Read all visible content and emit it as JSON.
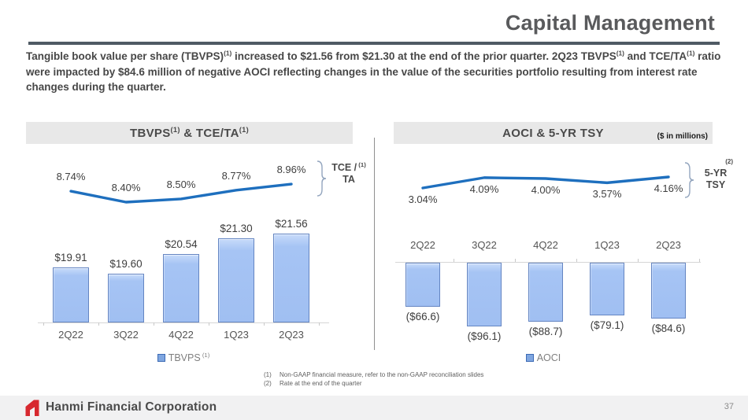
{
  "header": {
    "title": "Capital Management"
  },
  "intro": {
    "segments": [
      {
        "text": "Tangible book value per share (TBVPS)"
      },
      {
        "text": "(1)",
        "sup": true
      },
      {
        "text": " increased to $21.56 from $21.30 at the end of the prior quarter. 2Q23 TBVPS"
      },
      {
        "text": "(1)",
        "sup": true
      },
      {
        "text": " and TCE/TA"
      },
      {
        "text": "(1)",
        "sup": true
      },
      {
        "text": " ratio were impacted by $84.6 million of negative AOCI reflecting changes in the value of the securities portfolio resulting from interest rate changes during the quarter."
      }
    ]
  },
  "chart_data": [
    {
      "type": "bar",
      "title": "TBVPS(1) & TCE/TA(1)",
      "title_segments": [
        {
          "text": "TBVPS"
        },
        {
          "text": "(1)",
          "sup": true
        },
        {
          "text": " & TCE/TA"
        },
        {
          "text": "(1)",
          "sup": true
        }
      ],
      "categories": [
        "2Q22",
        "3Q22",
        "4Q22",
        "1Q23",
        "2Q23"
      ],
      "series": [
        {
          "name": "TBVPS",
          "type": "bar",
          "values": [
            19.91,
            19.6,
            20.54,
            21.3,
            21.56
          ],
          "labels": [
            "$19.91",
            "$19.60",
            "$20.54",
            "$21.30",
            "$21.56"
          ]
        },
        {
          "name": "TCE/TA",
          "type": "line",
          "values": [
            8.74,
            8.4,
            8.5,
            8.77,
            8.96
          ],
          "labels": [
            "8.74%",
            "8.40%",
            "8.50%",
            "8.77%",
            "8.96%"
          ]
        }
      ],
      "legend": {
        "label": "TBVPS",
        "sup": "(1)"
      },
      "axis_label": {
        "lines": [
          "TCE /",
          "TA"
        ],
        "sup": "(1)",
        "sup_position": "inline"
      },
      "xlabel": "",
      "ylabel": ""
    },
    {
      "type": "bar",
      "title": "AOCI & 5-YR TSY",
      "title_segments": [
        {
          "text": "AOCI & 5-YR TSY"
        }
      ],
      "unit_note": "($ in millions)",
      "categories": [
        "2Q22",
        "3Q22",
        "4Q22",
        "1Q23",
        "2Q23"
      ],
      "series": [
        {
          "name": "AOCI",
          "type": "bar",
          "values": [
            -66.6,
            -96.1,
            -88.7,
            -79.1,
            -84.6
          ],
          "labels": [
            "($66.6)",
            "($96.1)",
            "($88.7)",
            "($79.1)",
            "($84.6)"
          ]
        },
        {
          "name": "5-YR TSY",
          "type": "line",
          "values": [
            3.04,
            4.09,
            4.0,
            3.57,
            4.16
          ],
          "labels": [
            "3.04%",
            "4.09%",
            "4.00%",
            "3.57%",
            "4.16%"
          ]
        }
      ],
      "legend": {
        "label": "AOCI",
        "sup": ""
      },
      "axis_label": {
        "lines": [
          "5-YR",
          "TSY"
        ],
        "sup": "(2)",
        "sup_position": "above"
      },
      "xlabel": "",
      "ylabel": ""
    }
  ],
  "footnotes": [
    {
      "num": "(1)",
      "text": "Non-GAAP financial measure, refer to the non-GAAP reconciliation slides"
    },
    {
      "num": "(2)",
      "text": "Rate at the end of the quarter"
    }
  ],
  "footer": {
    "company": "Hanmi Financial Corporation",
    "page": "37"
  },
  "colors": {
    "line_blue": "#1e6fbe",
    "bar_fill": "#a6c4f4",
    "bar_border": "#6485c2",
    "title_bar_bg": "#e8e8e8",
    "divider": "#4f5a64",
    "footer_bg": "#f1f1f2",
    "logo_red": "#d7282f",
    "bracket": "#93a5be"
  }
}
